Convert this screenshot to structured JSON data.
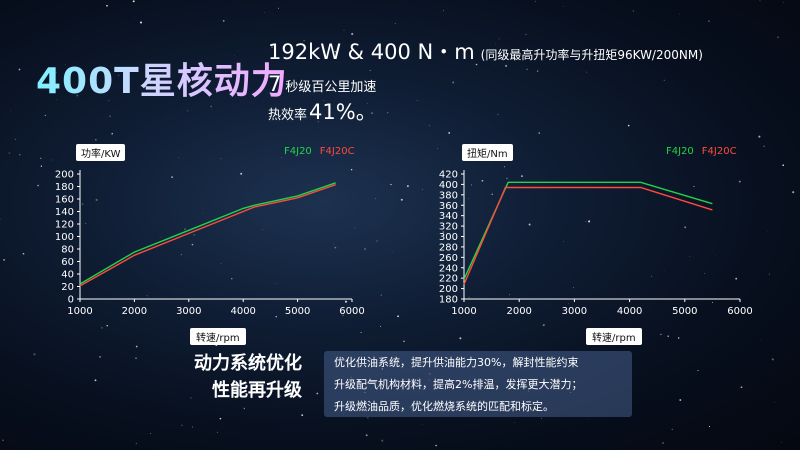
{
  "hero": {
    "title": "400T星核动力",
    "power_torque": "192kW & 400 N・m",
    "power_note": "(同级最高升功率与升扭矩96KW/200NM)",
    "accel_value": "7",
    "accel_text": "秒级百公里加速",
    "efficiency_text": "热效率",
    "efficiency_value": "41%。"
  },
  "optimization": {
    "title_line1": "动力系统优化",
    "title_line2": "性能再升级",
    "lines": [
      "优化供油系统，提升供油能力30%，解封性能约束",
      "升级配气机构材料，提高2%排温，发挥更大潜力；",
      "升级燃油品质，优化燃烧系统的匹配和标定。"
    ]
  },
  "colors": {
    "f4j20": "#22d34a",
    "f4j20c": "#ff4a3d",
    "accent": "#7ef0ff"
  },
  "chart_data": [
    {
      "type": "line",
      "ylabel": "功率/KW",
      "xlabel": "转速/rpm",
      "xlim": [
        1000,
        6000
      ],
      "ylim": [
        0,
        200
      ],
      "xticks": [
        1000,
        2000,
        3000,
        4000,
        5000,
        6000
      ],
      "yticks": [
        0,
        20,
        40,
        60,
        80,
        100,
        120,
        140,
        160,
        180,
        200
      ],
      "series": [
        {
          "name": "F4J20",
          "x": [
            1000,
            2000,
            3000,
            4000,
            4200,
            5000,
            5700
          ],
          "y": [
            24,
            75,
            110,
            145,
            150,
            165,
            186
          ]
        },
        {
          "name": "F4J20C",
          "x": [
            1000,
            2000,
            3000,
            4000,
            4200,
            5000,
            5700
          ],
          "y": [
            21,
            70,
            105,
            140,
            147,
            162,
            183
          ]
        }
      ]
    },
    {
      "type": "line",
      "ylabel": "扭矩/Nm",
      "xlabel": "转速/rpm",
      "xlim": [
        1000,
        6000
      ],
      "ylim": [
        180,
        420
      ],
      "xticks": [
        1000,
        2000,
        3000,
        4000,
        5000,
        6000
      ],
      "yticks": [
        180,
        200,
        220,
        240,
        260,
        280,
        300,
        320,
        340,
        360,
        380,
        400,
        420
      ],
      "series": [
        {
          "name": "F4J20",
          "x": [
            1000,
            1800,
            4200,
            5500
          ],
          "y": [
            218,
            404,
            404,
            363
          ]
        },
        {
          "name": "F4J20C",
          "x": [
            1000,
            1750,
            4200,
            5500
          ],
          "y": [
            208,
            394,
            394,
            351
          ]
        }
      ]
    }
  ]
}
